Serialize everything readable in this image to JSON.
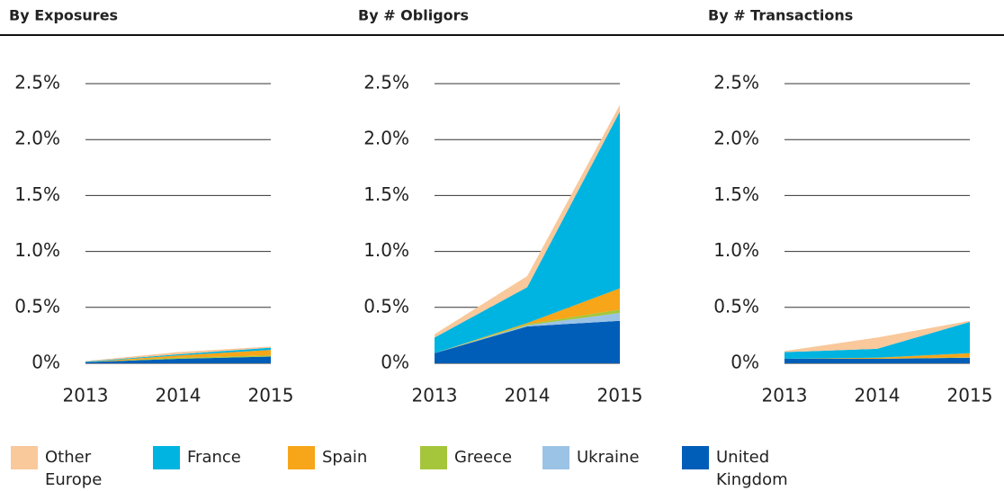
{
  "chart_data": [
    {
      "type": "area",
      "title": "By Exposures",
      "categories": [
        "2013",
        "2014",
        "2015"
      ],
      "ylim": [
        0,
        2.5
      ],
      "yticks": [
        {
          "value": 0,
          "label": "0%"
        },
        {
          "value": 0.5,
          "label": "0.5%"
        },
        {
          "value": 1,
          "label": "1.0%"
        },
        {
          "value": 1.5,
          "label": "1.5%"
        },
        {
          "value": 2,
          "label": "2.0%"
        },
        {
          "value": 2.5,
          "label": "2.5%"
        }
      ],
      "series": [
        {
          "name": "United Kingdom",
          "color": "#005eb8",
          "values": [
            0.01,
            0.04,
            0.06
          ]
        },
        {
          "name": "Ukraine",
          "color": "#9bc3e6",
          "values": [
            0,
            0,
            0
          ]
        },
        {
          "name": "Greece",
          "color": "#a5c63b",
          "values": [
            0,
            0.01,
            0.01
          ]
        },
        {
          "name": "Spain",
          "color": "#f7a519",
          "values": [
            0,
            0.02,
            0.05
          ]
        },
        {
          "name": "France",
          "color": "#00b4e1",
          "values": [
            0.005,
            0.01,
            0.02
          ]
        },
        {
          "name": "Other Europe",
          "color": "#f9c89b",
          "values": [
            0.005,
            0.02,
            0.01
          ]
        }
      ]
    },
    {
      "type": "area",
      "title": "By # Obligors",
      "categories": [
        "2013",
        "2014",
        "2015"
      ],
      "ylim": [
        0,
        2.5
      ],
      "yticks": [
        {
          "value": 0,
          "label": "0%"
        },
        {
          "value": 0.5,
          "label": "0.5%"
        },
        {
          "value": 1,
          "label": "1.0%"
        },
        {
          "value": 1.5,
          "label": "1.5%"
        },
        {
          "value": 2,
          "label": "2.0%"
        },
        {
          "value": 2.5,
          "label": "2.5%"
        }
      ],
      "series": [
        {
          "name": "United Kingdom",
          "color": "#005eb8",
          "values": [
            0.09,
            0.33,
            0.38
          ]
        },
        {
          "name": "Ukraine",
          "color": "#9bc3e6",
          "values": [
            0,
            0.01,
            0.07
          ]
        },
        {
          "name": "Greece",
          "color": "#a5c63b",
          "values": [
            0,
            0.01,
            0.03
          ]
        },
        {
          "name": "Spain",
          "color": "#f7a519",
          "values": [
            0,
            0.01,
            0.19
          ]
        },
        {
          "name": "France",
          "color": "#00b4e1",
          "values": [
            0.14,
            0.32,
            1.58
          ]
        },
        {
          "name": "Other Europe",
          "color": "#f9c89b",
          "values": [
            0.03,
            0.1,
            0.06
          ]
        }
      ]
    },
    {
      "type": "area",
      "title": "By # Transactions",
      "categories": [
        "2013",
        "2014",
        "2015"
      ],
      "ylim": [
        0,
        2.5
      ],
      "yticks": [
        {
          "value": 0,
          "label": "0%"
        },
        {
          "value": 0.5,
          "label": "0.5%"
        },
        {
          "value": 1,
          "label": "1.0%"
        },
        {
          "value": 1.5,
          "label": "1.5%"
        },
        {
          "value": 2,
          "label": "2.0%"
        },
        {
          "value": 2.5,
          "label": "2.5%"
        }
      ],
      "series": [
        {
          "name": "United Kingdom",
          "color": "#005eb8",
          "values": [
            0.04,
            0.04,
            0.05
          ]
        },
        {
          "name": "Ukraine",
          "color": "#9bc3e6",
          "values": [
            0,
            0,
            0
          ]
        },
        {
          "name": "Greece",
          "color": "#a5c63b",
          "values": [
            0,
            0,
            0.005
          ]
        },
        {
          "name": "Spain",
          "color": "#f7a519",
          "values": [
            0,
            0.01,
            0.035
          ]
        },
        {
          "name": "France",
          "color": "#00b4e1",
          "values": [
            0.06,
            0.08,
            0.28
          ]
        },
        {
          "name": "Other Europe",
          "color": "#f9c89b",
          "values": [
            0.01,
            0.1,
            0.01
          ]
        }
      ]
    }
  ]
}
